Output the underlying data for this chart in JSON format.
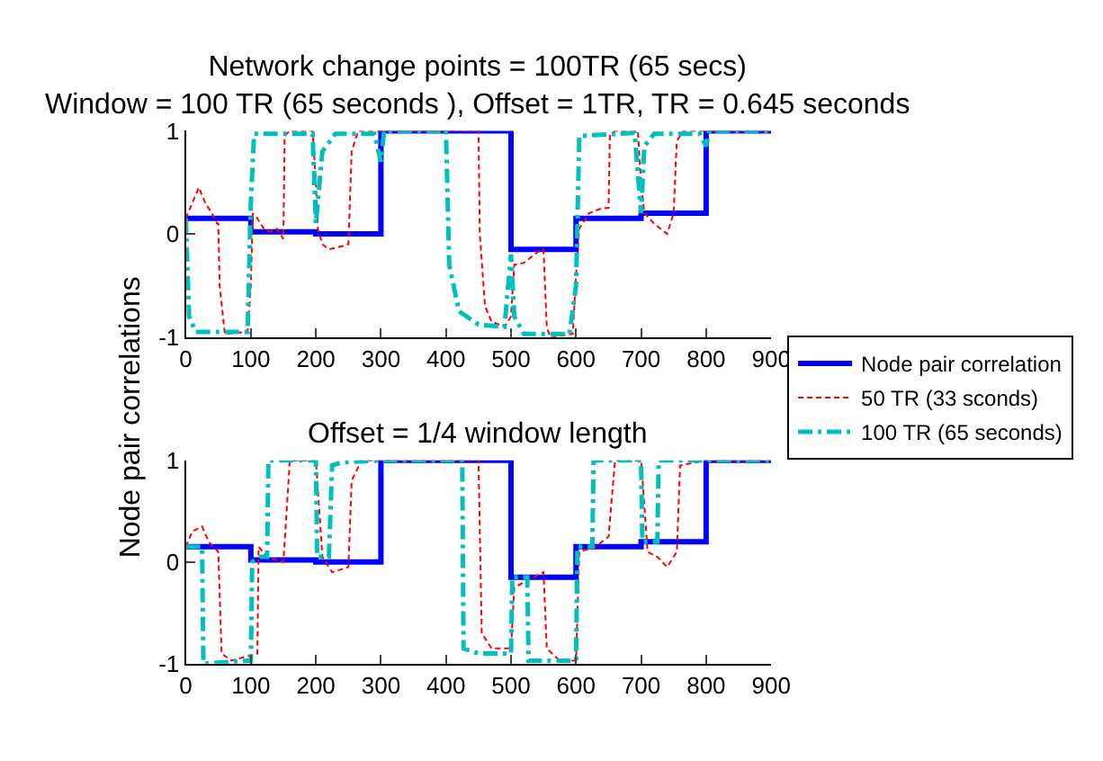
{
  "chart_data": [
    {
      "type": "line",
      "title": "Network change points = 100TR (65 secs)\nWindow = 100 TR (65 seconds ), Offset = 1TR, TR = 0.645 seconds",
      "ylabel": "Node pair correlations",
      "xlim": [
        0,
        900
      ],
      "ylim": [
        -1,
        1
      ],
      "xticks": [
        0,
        100,
        200,
        300,
        400,
        500,
        600,
        700,
        800,
        900
      ],
      "yticks": [
        -1,
        0,
        1
      ],
      "legend": "right",
      "marker": "none",
      "series": [
        {
          "name": "Node pair correlation",
          "color": "#0000ff",
          "line_style": "solid",
          "x": [
            0,
            100,
            100,
            200,
            200,
            300,
            300,
            500,
            500,
            600,
            600,
            700,
            700,
            800,
            800,
            900
          ],
          "values": [
            0.15,
            0.15,
            0.02,
            0.02,
            0,
            0,
            1,
            1,
            -0.15,
            -0.15,
            0.15,
            0.15,
            0.2,
            0.2,
            1,
            1
          ]
        },
        {
          "name": "50 TR (33 sconds)",
          "color": "#ff0000",
          "line_style": "dashed",
          "x": [
            0,
            10,
            20,
            30,
            40,
            48,
            50,
            52,
            60,
            95,
            100,
            103,
            110,
            120,
            130,
            140,
            150,
            152,
            160,
            195,
            200,
            203,
            210,
            220,
            240,
            250,
            255,
            265,
            300,
            450,
            452,
            460,
            470,
            490,
            500,
            505,
            520,
            540,
            550,
            555,
            560,
            595,
            600,
            605,
            620,
            640,
            650,
            652,
            660,
            695,
            700,
            705,
            720,
            740,
            750,
            755,
            765,
            800,
            900
          ],
          "values": [
            0.15,
            0.3,
            0.45,
            0.3,
            0.2,
            0.1,
            0.1,
            -0.5,
            -0.97,
            -0.95,
            -0.5,
            0.2,
            0.15,
            0.05,
            0.02,
            0.05,
            -0.05,
            0.95,
            1,
            1,
            0.5,
            0.05,
            -0.1,
            -0.15,
            -0.12,
            -0.1,
            0.8,
            1,
            1,
            1,
            0,
            -0.7,
            -0.85,
            -0.9,
            -0.8,
            -0.3,
            -0.28,
            -0.18,
            -0.15,
            -0.9,
            -1,
            -0.97,
            -0.4,
            0.05,
            0.2,
            0.25,
            0.25,
            0.95,
            1,
            1,
            0.5,
            0.2,
            0.1,
            0,
            0.2,
            0.9,
            1,
            1,
            1
          ]
        },
        {
          "name": "100 TR (65 seconds)",
          "color": "#00bfbf",
          "line_style": "dashdot",
          "x": [
            0,
            5,
            15,
            95,
            100,
            105,
            195,
            200,
            210,
            230,
            290,
            300,
            305,
            400,
            405,
            420,
            450,
            490,
            500,
            505,
            520,
            590,
            600,
            605,
            690,
            700,
            705,
            720,
            790,
            800,
            805,
            900
          ],
          "values": [
            0.15,
            -0.8,
            -0.95,
            -0.95,
            0.3,
            0.97,
            0.97,
            0.1,
            0.8,
            0.97,
            0.97,
            0.7,
            1,
            1,
            -0.3,
            -0.75,
            -0.88,
            -0.9,
            -0.2,
            -0.8,
            -0.97,
            -0.97,
            -0.5,
            0.95,
            0.98,
            0.2,
            0.85,
            0.97,
            0.97,
            0.85,
            1,
            1
          ]
        }
      ]
    },
    {
      "type": "line",
      "title": "Offset = 1/4 window length",
      "xlim": [
        0,
        900
      ],
      "ylim": [
        -1,
        1
      ],
      "xticks": [
        0,
        100,
        200,
        300,
        400,
        500,
        600,
        700,
        800,
        900
      ],
      "yticks": [
        -1,
        0,
        1
      ],
      "marker": "none",
      "series": [
        {
          "color": "#0000ff",
          "line_style": "solid",
          "x": [
            0,
            100,
            100,
            200,
            200,
            300,
            300,
            500,
            500,
            600,
            600,
            700,
            700,
            800,
            800,
            900
          ],
          "values": [
            0.15,
            0.15,
            0.02,
            0.02,
            0,
            0,
            1,
            1,
            -0.15,
            -0.15,
            0.15,
            0.15,
            0.2,
            0.2,
            1,
            1
          ]
        },
        {
          "color": "#ff0000",
          "line_style": "dashed",
          "x": [
            0,
            10,
            25,
            35,
            50,
            55,
            70,
            110,
            112,
            125,
            150,
            160,
            200,
            210,
            225,
            250,
            255,
            270,
            300,
            450,
            455,
            470,
            500,
            505,
            520,
            550,
            555,
            575,
            600,
            605,
            630,
            650,
            660,
            700,
            710,
            725,
            740,
            755,
            760,
            800,
            900
          ],
          "values": [
            0.15,
            0.3,
            0.35,
            0.2,
            0.1,
            -0.9,
            -0.97,
            -0.9,
            0.15,
            0.05,
            0,
            1,
            1,
            0.05,
            -0.1,
            -0.05,
            0.8,
            1,
            1,
            1,
            -0.7,
            -0.85,
            -0.85,
            -0.25,
            -0.2,
            -0.1,
            -0.85,
            -0.97,
            -0.97,
            0.1,
            0.15,
            0.25,
            1,
            1,
            0.1,
            0.05,
            -0.05,
            0.1,
            0.95,
            1,
            1
          ]
        },
        {
          "color": "#00bfbf",
          "line_style": "dashdot",
          "x": [
            0,
            25,
            27,
            95,
            100,
            102,
            115,
            125,
            127,
            200,
            202,
            220,
            225,
            240,
            300,
            425,
            427,
            450,
            500,
            502,
            525,
            527,
            600,
            602,
            625,
            627,
            700,
            702,
            725,
            727,
            800,
            900
          ],
          "values": [
            0.15,
            0.15,
            -1,
            -0.97,
            -0.97,
            0,
            0.05,
            0.05,
            1,
            1,
            0.05,
            0.05,
            0.95,
            0.98,
            1,
            1,
            -0.85,
            -0.9,
            -0.9,
            -0.15,
            -0.15,
            -0.97,
            -0.97,
            0.15,
            0.15,
            1,
            1,
            0.2,
            0.2,
            1,
            1,
            1
          ]
        }
      ]
    }
  ]
}
